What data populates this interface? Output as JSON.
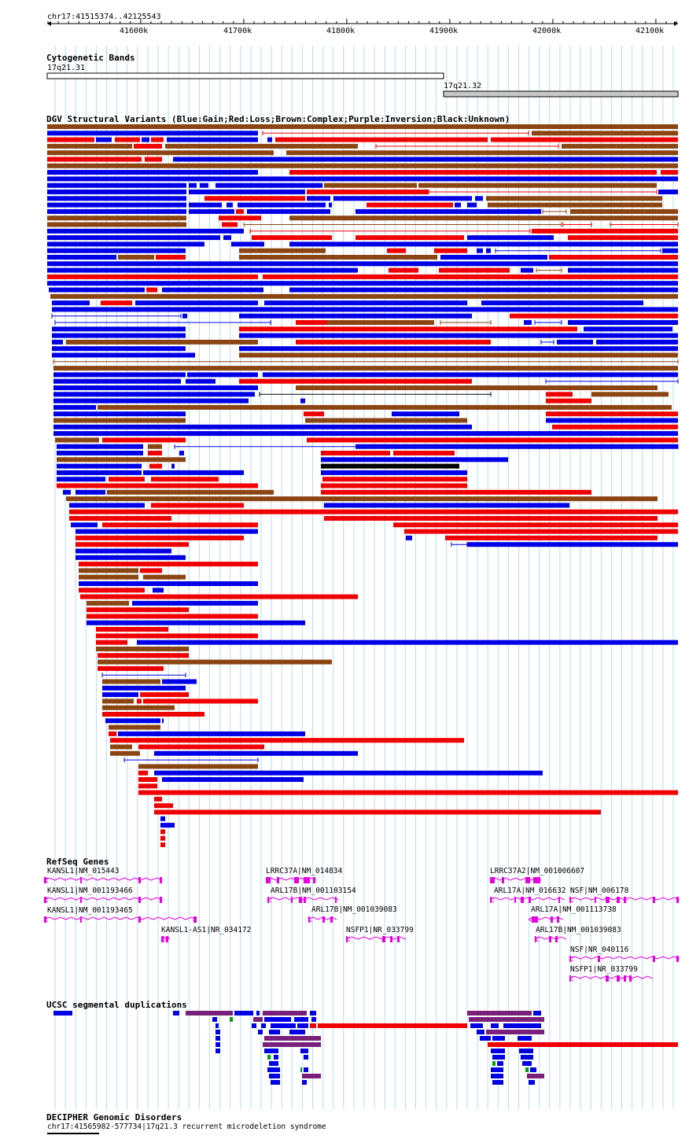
{
  "ruler": {
    "position_label": "chr17:41515374..42125543",
    "ticks": [
      "41600k",
      "41700k",
      "41800k",
      "41900k",
      "42000k",
      "42100k"
    ]
  },
  "tracks": {
    "cytoband": {
      "title": "Cytogenetic Bands",
      "bands": [
        {
          "label": "17q21.31",
          "fill": "#ffffff"
        },
        {
          "label": "17q21.32",
          "fill": "#c8c8c8"
        }
      ]
    },
    "dgv": {
      "title": "DGV Structural Variants (Blue:Gain;Red:Loss;Brown:Complex;Purple:Inversion;Black:Unknown)",
      "colors": {
        "gain": "#0000e6",
        "loss": "#f00000",
        "complex": "#8b4513",
        "unknown": "#000000"
      }
    },
    "refseq": {
      "title": "RefSeq Genes",
      "color": "#e600e6",
      "labels": [
        "KANSL1|NM_015443",
        "KANSL1|NM_001193466",
        "KANSL1|NM_001193465",
        "KANSL1-AS1|NR_034172",
        "LRRC37A|NM_014834",
        "ARL17B|NM_001103154",
        "ARL17B|NM_001039083",
        "NSFP1|NR_033799",
        "LRRC37A2|NM_001006607",
        "ARL17A|NM_016632",
        "NSF|NM_006178",
        "ARL17A|NM_001113738",
        "ARL17B|NM_001039083",
        "NSF|NR_040116",
        "NSFP1|NR_033799"
      ]
    },
    "segdups": {
      "title": "UCSC segmental duplications",
      "colors": {
        "blue": "#0000e6",
        "purple": "#7a1f7a",
        "red": "#f00000",
        "green": "#00a000"
      }
    },
    "decipher": {
      "title": "DECIPHER Genomic Disorders",
      "feature_label": "chr17:41565982-577734|17q21.3 recurrent microdeletion syndrome"
    }
  }
}
